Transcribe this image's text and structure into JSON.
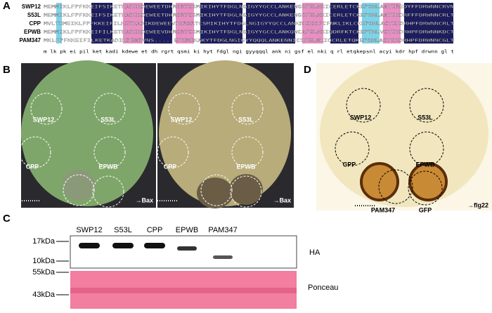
{
  "panels": {
    "a": "A",
    "b": "B",
    "c": "C",
    "d": "D"
  },
  "alignment": {
    "rows": [
      {
        "name": "SWP12",
        "sequence": "MEMMIKLFPFKKEIFSIKETKADIKDEWEETDHRGRTCSMIKIHYTFDGLNGIGYYGCCLANKENGSFELNKICERLETCKEPSNLANYIREDYFFDRWNNCRVN"
      },
      {
        "name": "S53L",
        "sequence": "MEMMIKLFPFKKEIFSIKETKADIKDEWEETDHRGRTCSMIKIHYTFDGLNGIGYYGCCLANKENGSFELNKICERLETCKEPSNLANYIKDRFFFDRWNNCRLT"
      },
      {
        "name": "CPP",
        "sequence": "MVLTEMEIKLFPFKKEIFILKETKADIKDEWEEVDHRGRTCSMIKIHYTFDGLNGIGYYQCCLANKDKIGSFCFNKLIKLCKEPSNLACYIKDRHPFDRWNNCRLT"
      },
      {
        "name": "EPWB",
        "sequence": "MEMMIKLFPFKKEIFILKETKADIKDEWEEVDHRGRTCSMIKIHYTFDGLNGIGYYGCCLANKQNCAFELNKIQDRFKTCKEPTNLVCYIKDRHPFDRWNNKDCT"
      },
      {
        "name": "PAM347",
        "sequence": "MKLFPFKKEIFILKETKADIKDEWDVNS.....EFKMIKAKYTFDGLNGIGYYQQQLANKENNICSFELNKIQCRLETQKEPSNLACYIKDRHPFDRWNNCGLT"
      }
    ],
    "consensus": "m      lk pk ei pil ket kadi kdewe et dh rgrt qsmi ki hyt fdgl ngi gyyqqql ank  ni gsf el nki q rl etqkepsnl acyi kdr hpf drwnn gl t"
  },
  "leaf_labels": [
    "SWP12",
    "S53L",
    "CPP",
    "EPWB",
    "PAM347",
    "GFP"
  ],
  "panel_b": {
    "treatment": "→Bax"
  },
  "panel_d": {
    "treatment": "→flg22"
  },
  "panel_c": {
    "lanes": [
      "SWP12",
      "S53L",
      "CPP",
      "EPWB",
      "PAM347"
    ],
    "markers": [
      "17kDa",
      "10kDa",
      "55kDa",
      "43kDa"
    ],
    "blots": [
      "HA",
      "Ponceau"
    ]
  }
}
